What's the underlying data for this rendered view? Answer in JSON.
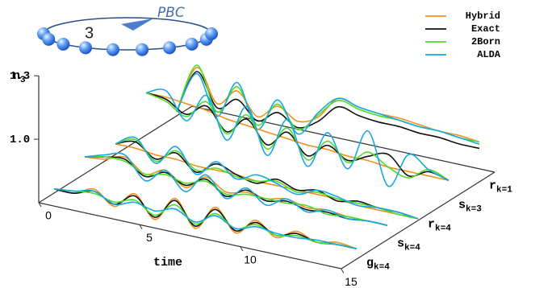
{
  "chart_data": {
    "type": "waterfall",
    "inset": {
      "label": "PBC",
      "site": "3"
    },
    "xlabel": "time",
    "ylabel": {
      "symbol": "n",
      "subscript": "3"
    },
    "x": [
      0,
      1,
      2,
      3,
      4,
      5,
      6,
      7,
      8,
      9,
      10,
      11,
      12,
      13,
      14,
      15
    ],
    "xlim": [
      0,
      15
    ],
    "xticks": [
      0,
      5,
      10,
      15
    ],
    "ylim": [
      0.7,
      1.3
    ],
    "yticks": [
      {
        "value": 1,
        "label": "1.0"
      },
      1.3
    ],
    "series": [
      {
        "name": "Hybrid",
        "color": "#f0901e"
      },
      {
        "name": "Exact",
        "color": "#111111"
      },
      {
        "name": "2Born",
        "color": "#4cdc2c"
      },
      {
        "name": "ALDA",
        "color": "#17a8e0"
      }
    ],
    "rows": [
      {
        "label": {
          "symbol": "g",
          "subscript": "k=4"
        },
        "values": [
          [
            0.72,
            0.72,
            0.76,
            0.7,
            0.78,
            0.68,
            0.8,
            0.68,
            0.8,
            0.7,
            0.78,
            0.72,
            0.77,
            0.74,
            0.76,
            0.75
          ],
          [
            0.72,
            0.72,
            0.75,
            0.71,
            0.77,
            0.69,
            0.79,
            0.69,
            0.79,
            0.71,
            0.77,
            0.73,
            0.76,
            0.74,
            0.75,
            0.75
          ],
          [
            0.72,
            0.73,
            0.74,
            0.72,
            0.75,
            0.7,
            0.77,
            0.7,
            0.77,
            0.72,
            0.76,
            0.73,
            0.75,
            0.74,
            0.75,
            0.75
          ],
          [
            0.72,
            0.73,
            0.75,
            0.71,
            0.74,
            0.72,
            0.75,
            0.71,
            0.76,
            0.72,
            0.75,
            0.74,
            0.74,
            0.75,
            0.75,
            0.75
          ]
        ]
      },
      {
        "label": {
          "symbol": "s",
          "subscript": "k=4"
        },
        "values": [
          [
            0.78,
            0.79,
            0.82,
            0.76,
            0.8,
            0.74,
            0.81,
            0.76,
            0.78,
            0.77,
            0.79,
            0.77,
            0.78,
            0.77,
            0.77,
            0.77
          ],
          [
            0.78,
            0.8,
            0.81,
            0.75,
            0.79,
            0.75,
            0.8,
            0.74,
            0.79,
            0.76,
            0.78,
            0.76,
            0.77,
            0.76,
            0.77,
            0.77
          ],
          [
            0.78,
            0.8,
            0.8,
            0.76,
            0.78,
            0.76,
            0.79,
            0.75,
            0.77,
            0.77,
            0.77,
            0.78,
            0.76,
            0.77,
            0.77,
            0.77
          ],
          [
            0.78,
            0.81,
            0.83,
            0.73,
            0.8,
            0.72,
            0.82,
            0.73,
            0.8,
            0.74,
            0.79,
            0.75,
            0.78,
            0.76,
            0.77,
            0.77
          ]
        ]
      },
      {
        "label": {
          "symbol": "r",
          "subscript": "k=4"
        },
        "values": [
          [
            0.75,
            0.75,
            0.74,
            0.74,
            0.73,
            0.73,
            0.73,
            0.72,
            0.72,
            0.72,
            0.72,
            0.72,
            0.71,
            0.71,
            0.71,
            0.71
          ],
          [
            0.75,
            0.78,
            0.72,
            0.77,
            0.7,
            0.76,
            0.73,
            0.71,
            0.75,
            0.72,
            0.74,
            0.71,
            0.73,
            0.72,
            0.72,
            0.71
          ],
          [
            0.75,
            0.79,
            0.71,
            0.78,
            0.71,
            0.74,
            0.72,
            0.72,
            0.74,
            0.71,
            0.73,
            0.72,
            0.72,
            0.72,
            0.71,
            0.71
          ],
          [
            0.75,
            0.8,
            0.7,
            0.8,
            0.69,
            0.77,
            0.71,
            0.75,
            0.73,
            0.7,
            0.74,
            0.73,
            0.71,
            0.72,
            0.72,
            0.71
          ]
        ]
      },
      {
        "label": {
          "symbol": "s",
          "subscript": "k=3"
        },
        "values": [
          [
            0.9,
            0.9,
            0.89,
            0.88,
            0.86,
            0.85,
            0.84,
            0.83,
            0.82,
            0.82,
            0.81,
            0.81,
            0.8,
            0.8,
            0.8,
            0.8
          ],
          [
            0.9,
            0.89,
            0.84,
            0.9,
            0.8,
            0.88,
            0.78,
            0.86,
            0.77,
            0.84,
            0.79,
            0.83,
            0.86,
            0.78,
            0.82,
            0.8
          ],
          [
            0.9,
            0.88,
            0.83,
            0.92,
            0.79,
            0.9,
            0.76,
            0.88,
            0.75,
            0.86,
            0.78,
            0.85,
            0.8,
            0.77,
            0.83,
            0.8
          ],
          [
            0.9,
            0.93,
            0.81,
            0.95,
            0.76,
            0.94,
            0.73,
            0.92,
            0.72,
            0.9,
            0.75,
            0.95,
            0.71,
            0.88,
            0.83,
            0.8
          ]
        ]
      },
      {
        "label": {
          "symbol": "r",
          "subscript": "k=1"
        },
        "values": [
          [
            0.72,
            0.95,
            0.8,
            0.88,
            0.78,
            0.85,
            0.8,
            0.84,
            0.95,
            0.93,
            0.92,
            0.92,
            0.91,
            0.9,
            0.9,
            0.89
          ],
          [
            0.72,
            0.93,
            0.78,
            0.84,
            0.76,
            0.82,
            0.77,
            0.82,
            0.91,
            0.89,
            0.88,
            0.88,
            0.87,
            0.87,
            0.86,
            0.86
          ],
          [
            0.72,
            0.96,
            0.76,
            0.9,
            0.74,
            0.86,
            0.76,
            0.85,
            0.94,
            0.92,
            0.91,
            0.91,
            0.9,
            0.9,
            0.89,
            0.89
          ],
          [
            0.72,
            0.92,
            0.74,
            0.92,
            0.72,
            0.88,
            0.74,
            0.86,
            0.95,
            0.93,
            0.92,
            0.91,
            0.9,
            0.9,
            0.89,
            0.88
          ]
        ]
      }
    ]
  }
}
